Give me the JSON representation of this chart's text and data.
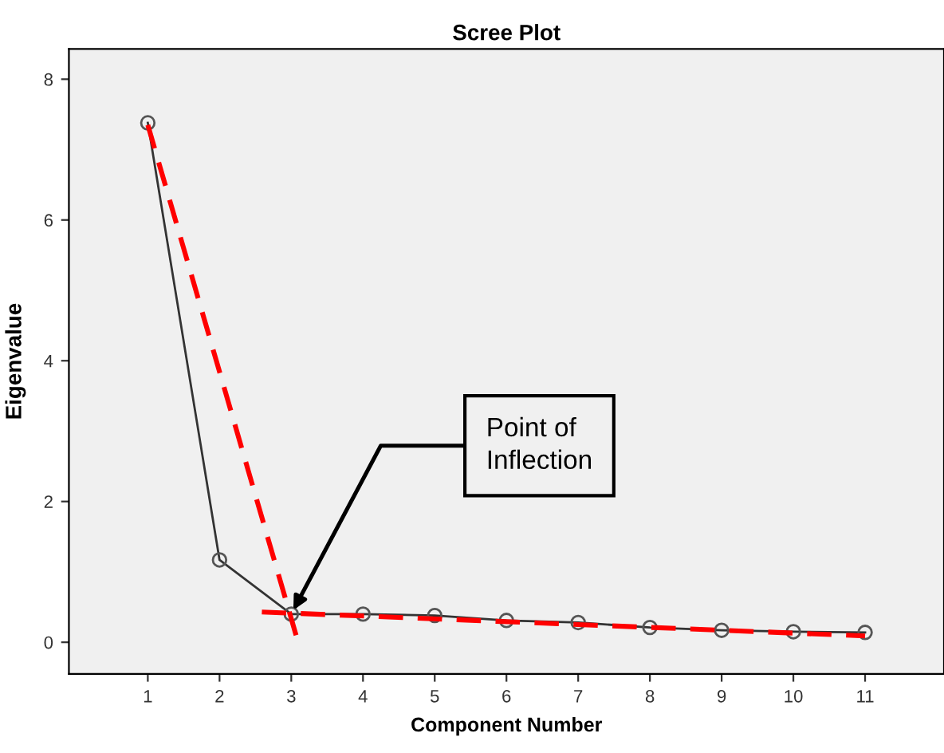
{
  "chart_data": {
    "type": "line",
    "title": "Scree Plot",
    "xlabel": "Component Number",
    "ylabel": "Eigenvalue",
    "xlim": [
      -0.1,
      12.1
    ],
    "ylim": [
      -0.45,
      8.43
    ],
    "xticks": [
      1,
      2,
      3,
      4,
      5,
      6,
      7,
      8,
      9,
      10,
      11
    ],
    "yticks": [
      0,
      2,
      4,
      6,
      8
    ],
    "grid": false,
    "legend": false,
    "series": [
      {
        "color": "#333333",
        "marker": "circle",
        "line_style": "solid",
        "x": [
          1,
          2,
          3,
          4,
          5,
          6,
          7,
          8,
          9,
          10,
          11
        ],
        "values": [
          7.38,
          1.17,
          0.4,
          0.4,
          0.38,
          0.31,
          0.28,
          0.21,
          0.17,
          0.15,
          0.14
        ]
      },
      {
        "color": "#ff0000",
        "marker": "none",
        "line_style": "dashed",
        "x": [
          1,
          3.07
        ],
        "values": [
          7.35,
          0.09
        ]
      },
      {
        "color": "#ff0000",
        "marker": "none",
        "line_style": "dashed",
        "x": [
          2.59,
          11
        ],
        "values": [
          0.43,
          0.09
        ]
      }
    ],
    "annotations": [
      {
        "text": "Point of\nInflection",
        "x": 3,
        "y": 0.4
      }
    ]
  }
}
